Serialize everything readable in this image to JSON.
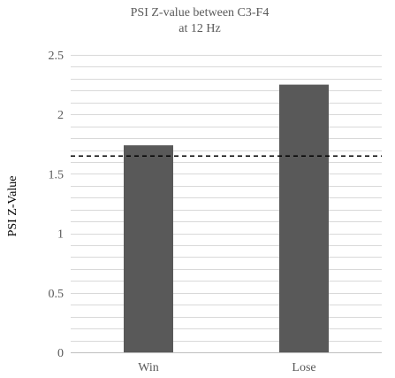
{
  "chart_data": {
    "type": "bar",
    "title_lines": [
      "PSI Z-value between C3-F4",
      "at 12 Hz"
    ],
    "xlabel": "",
    "ylabel": "PSI Z-Value",
    "categories": [
      "Win",
      "Lose"
    ],
    "values": [
      1.74,
      2.25
    ],
    "ylim": [
      0,
      2.5
    ],
    "yticks": [
      0,
      0.5,
      1,
      1.5,
      2,
      2.5
    ],
    "ytick_labels": [
      "0",
      "0.5",
      "1",
      "1.5",
      "2",
      "2.5"
    ],
    "threshold": 1.65,
    "threshold_style": "dashed",
    "grid": true,
    "legend": "none",
    "bar_color": "#595959",
    "grid_color": "#d9d9d9"
  }
}
